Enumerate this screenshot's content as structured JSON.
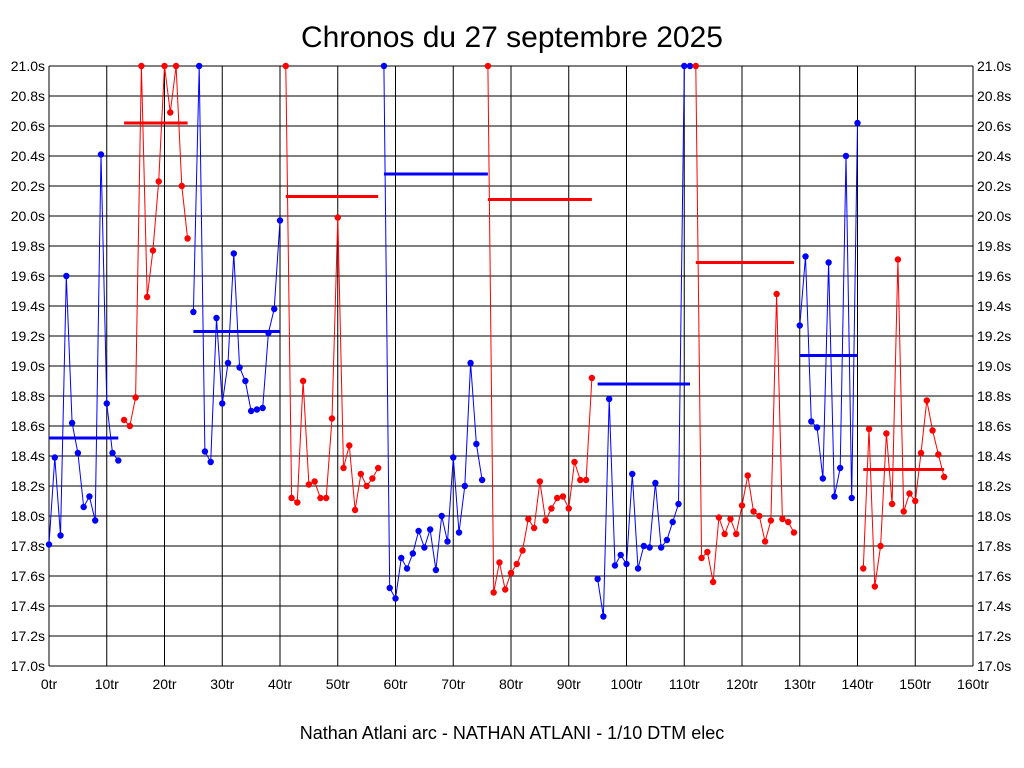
{
  "chart_data": {
    "type": "line",
    "title": "Chronos du 27 septembre 2025",
    "subtitle": "Nathan Atlani arc - NATHAN ATLANI - 1/10 DTM elec",
    "x_ticks": [
      "0tr",
      "10tr",
      "20tr",
      "30tr",
      "40tr",
      "50tr",
      "60tr",
      "70tr",
      "80tr",
      "90tr",
      "100tr",
      "110tr",
      "120tr",
      "130tr",
      "140tr",
      "150tr",
      "160tr"
    ],
    "y_ticks": [
      "17.0s",
      "17.2s",
      "17.4s",
      "17.6s",
      "17.8s",
      "18.0s",
      "18.2s",
      "18.4s",
      "18.6s",
      "18.8s",
      "19.0s",
      "19.2s",
      "19.4s",
      "19.6s",
      "19.8s",
      "20.0s",
      "20.2s",
      "20.4s",
      "20.6s",
      "20.8s",
      "21.0s"
    ],
    "xlim": [
      0,
      160
    ],
    "ylim": [
      17.0,
      21.0
    ],
    "grid": true,
    "colors": {
      "blue": "#0000ff",
      "red": "#ff0000",
      "grid": "#000000"
    },
    "segments": [
      {
        "color": "blue",
        "x_start": 0,
        "values": [
          17.81,
          18.39,
          17.87,
          19.6,
          18.62,
          18.42,
          18.06,
          18.13,
          17.97,
          20.41,
          18.75,
          18.42,
          18.37
        ],
        "mean": 18.52,
        "mean_range": [
          0,
          12
        ]
      },
      {
        "color": "red",
        "x_start": 13,
        "values": [
          18.64,
          18.6,
          18.79,
          21.0,
          19.46,
          19.77,
          20.23,
          21.0,
          20.69,
          21.0,
          20.2,
          19.85
        ],
        "mean": 20.62,
        "mean_range": [
          13,
          24
        ]
      },
      {
        "color": "blue",
        "x_start": 25,
        "values": [
          19.36,
          21.0,
          18.43,
          18.36,
          19.32,
          18.75,
          19.02,
          19.75,
          18.99,
          18.9,
          18.7,
          18.71,
          18.72,
          19.22,
          19.38,
          19.97
        ],
        "mean": 19.23,
        "mean_range": [
          25,
          40
        ]
      },
      {
        "color": "red",
        "x_start": 41,
        "values": [
          21.0,
          18.12,
          18.09,
          18.9,
          18.21,
          18.23,
          18.12,
          18.12,
          18.65,
          19.99,
          18.32,
          18.47,
          18.04,
          18.28,
          18.2,
          18.25,
          18.32
        ],
        "mean": 20.13,
        "mean_range": [
          41,
          57
        ]
      },
      {
        "color": "blue",
        "x_start": 58,
        "values": [
          21.0,
          17.52,
          17.45,
          17.72,
          17.65,
          17.75,
          17.9,
          17.79,
          17.91,
          17.64,
          18.0,
          17.83,
          18.39,
          17.89,
          18.2,
          19.02,
          18.48,
          18.24
        ],
        "mean": 20.28,
        "mean_range": [
          58,
          76
        ]
      },
      {
        "color": "red",
        "x_start": 76,
        "values": [
          21.0,
          17.49,
          17.69,
          17.51,
          17.62,
          17.68,
          17.77,
          17.98,
          17.92,
          18.23,
          17.97,
          18.05,
          18.12,
          18.13,
          18.05,
          18.36,
          18.24,
          18.24,
          18.92
        ],
        "mean": 20.11,
        "mean_range": [
          76,
          94
        ]
      },
      {
        "color": "blue",
        "x_start": 95,
        "values": [
          17.58,
          17.33,
          18.78,
          17.67,
          17.74,
          17.68,
          18.28,
          17.65,
          17.8,
          17.79,
          18.22,
          17.79,
          17.84,
          17.96,
          18.08,
          21.0,
          21.0
        ],
        "mean": 18.88,
        "mean_range": [
          95,
          111
        ]
      },
      {
        "color": "red",
        "x_start": 112,
        "values": [
          21.0,
          17.72,
          17.76,
          17.56,
          17.99,
          17.88,
          17.98,
          17.88,
          18.07,
          18.27,
          18.03,
          18.0,
          17.83,
          17.97,
          19.48,
          17.98,
          17.96,
          17.89
        ],
        "mean": 19.69,
        "mean_range": [
          112,
          129
        ]
      },
      {
        "color": "blue",
        "x_start": 130,
        "values": [
          19.27,
          19.73,
          18.63,
          18.59,
          18.25,
          19.69,
          18.13,
          18.32,
          20.4,
          18.12,
          20.62
        ],
        "mean": 19.07,
        "mean_range": [
          130,
          140
        ]
      },
      {
        "color": "red",
        "x_start": 141,
        "values": [
          17.65,
          18.58,
          17.53,
          17.8,
          18.55,
          18.08,
          19.71,
          18.03,
          18.15,
          18.1,
          18.42,
          18.77,
          18.57,
          18.41,
          18.26
        ],
        "mean": 18.31,
        "mean_range": [
          141,
          155
        ]
      }
    ]
  }
}
